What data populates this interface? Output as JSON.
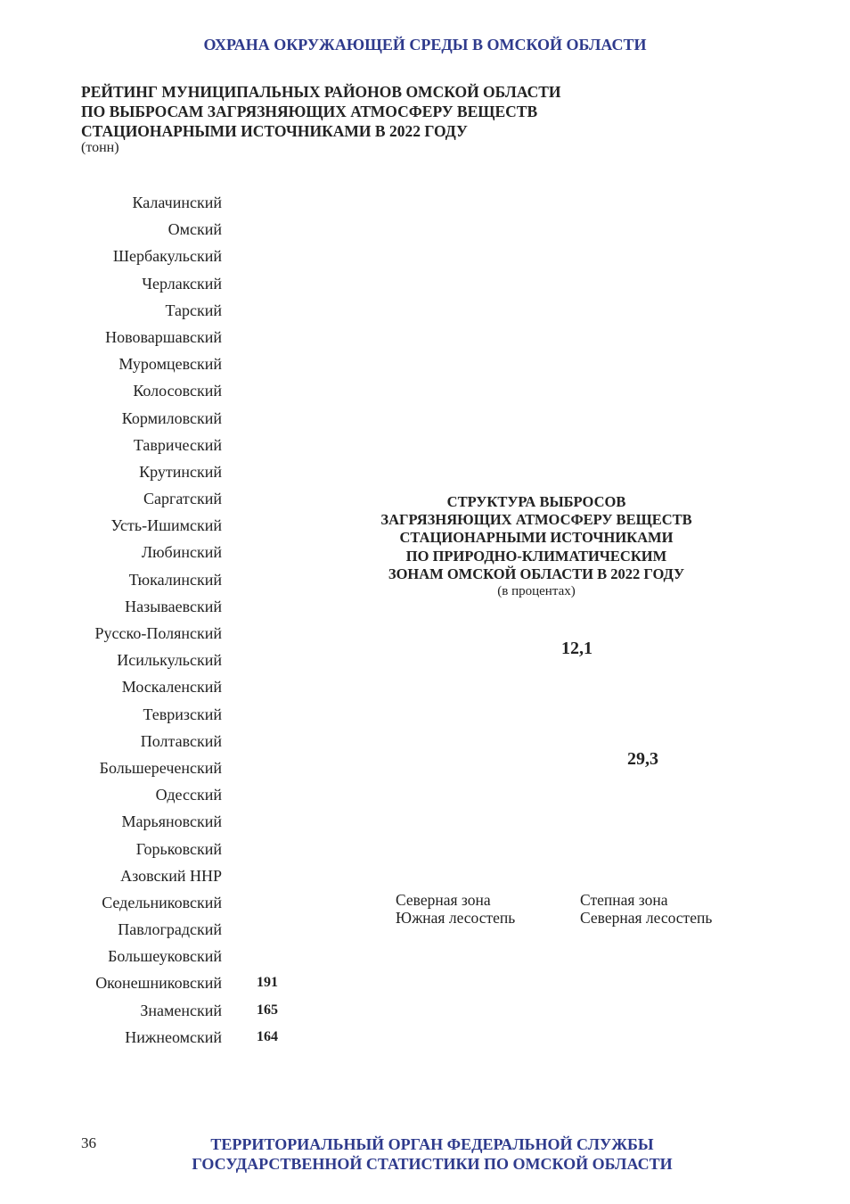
{
  "header": "ОХРАНА ОКРУЖАЮЩЕЙ СРЕДЫ В ОМСКОЙ ОБЛАСТИ",
  "rating_chart": {
    "title_lines": [
      "РЕЙТИНГ МУНИЦИПАЛЬНЫХ РАЙОНОВ ОМСКОЙ ОБЛАСТИ",
      "ПО ВЫБРОСАМ ЗАГРЯЗНЯЮЩИХ АТМОСФЕРУ ВЕЩЕСТВ",
      "СТАЦИОНАРНЫМИ ИСТОЧНИКАМИ В 2022 ГОДУ"
    ],
    "unit": "(тонн)"
  },
  "chart_data": [
    {
      "type": "bar",
      "orientation": "horizontal",
      "categories": [
        "Калачинский",
        "Омский",
        "Шербакульский",
        "Черлакский",
        "Тарский",
        "Нововаршавский",
        "Муромцевский",
        "Колосовский",
        "Кормиловский",
        "Таврический",
        "Крутинский",
        "Саргатский",
        "Усть-Ишимский",
        "Любинский",
        "Тюкалинский",
        "Называевский",
        "Русско-Полянский",
        "Исилькульский",
        "Москаленский",
        "Тевризский",
        "Полтавский",
        "Большереченский",
        "Одесский",
        "Марьяновский",
        "Горьковский",
        "Азовский ННР",
        "Седельниковский",
        "Павлоградский",
        "Большеуковский",
        "Оконешниковский",
        "Знаменский",
        "Нижнеомский"
      ],
      "value_labels": [
        "",
        "",
        "",
        "",
        "",
        "",
        "",
        "",
        "",
        "",
        "",
        "",
        "",
        "",
        "",
        "",
        "",
        "",
        "",
        "",
        "",
        "",
        "",
        "",
        "",
        "",
        "",
        "",
        "",
        "191",
        "165",
        "164"
      ]
    },
    {
      "type": "pie",
      "title_lines": [
        "СТРУКТУРА ВЫБРОСОВ",
        "ЗАГРЯЗНЯЮЩИХ АТМОСФЕРУ ВЕЩЕСТВ",
        "СТАЦИОНАРНЫМИ ИСТОЧНИКАМИ",
        "ПО ПРИРОДНО-КЛИМАТИЧЕСКИМ",
        "ЗОНАМ ОМСКОЙ ОБЛАСТИ В 2022 ГОДУ"
      ],
      "unit": "(в процентах)",
      "slice_labels": [
        "12,1",
        "29,3"
      ],
      "legend": [
        "Северная зона",
        "Степная зона",
        "Южная лесостепь",
        "Северная лесостепь"
      ]
    }
  ],
  "footer": {
    "page_number": "36",
    "lines": [
      "ТЕРРИТОРИАЛЬНЫЙ ОРГАН ФЕДЕРАЛЬНОЙ СЛУЖБЫ",
      "ГОСУДАРСТВЕННОЙ СТАТИСТИКИ ПО ОМСКОЙ ОБЛАСТИ"
    ]
  }
}
